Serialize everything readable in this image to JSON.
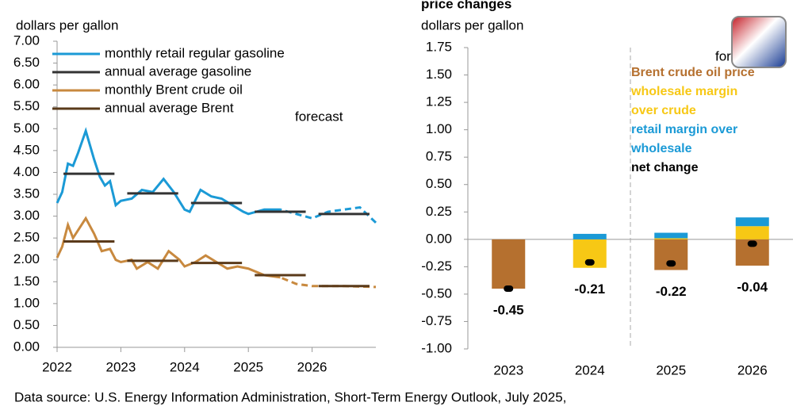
{
  "chart_data": [
    {
      "type": "line",
      "ylabel": "dollars per gallon",
      "xlim": [
        2022,
        2027
      ],
      "xticks": [
        2022,
        2023,
        2024,
        2025,
        2026
      ],
      "ylim": [
        0,
        7
      ],
      "yticks": [
        {
          "value": 0,
          "label": "0.00"
        },
        {
          "value": 0.5,
          "label": "0.50"
        },
        {
          "value": 1,
          "label": "1.00"
        },
        {
          "value": 1.5,
          "label": "1.50"
        },
        {
          "value": 2,
          "label": "2.00"
        },
        {
          "value": 2.5,
          "label": "2.50"
        },
        {
          "value": 3,
          "label": "3.00"
        },
        {
          "value": 3.5,
          "label": "3.50"
        },
        {
          "value": 4,
          "label": "4.00"
        },
        {
          "value": 4.5,
          "label": "4.50"
        },
        {
          "value": 5,
          "label": "5.00"
        },
        {
          "value": 5.5,
          "label": "5.50"
        },
        {
          "value": 6,
          "label": "6.00"
        },
        {
          "value": 6.5,
          "label": "6.50"
        },
        {
          "value": 7,
          "label": "7.00"
        }
      ],
      "forecast_from": 2025.5,
      "annotation": "forecast",
      "series": [
        {
          "name": "monthly retail regular gasoline",
          "color": "#1b9ad6",
          "style": "line",
          "x": [
            2022.0,
            2022.08,
            2022.17,
            2022.25,
            2022.33,
            2022.45,
            2022.58,
            2022.67,
            2022.75,
            2022.83,
            2022.92,
            2023.0,
            2023.17,
            2023.33,
            2023.5,
            2023.67,
            2023.83,
            2024.0,
            2024.08,
            2024.25,
            2024.42,
            2024.58,
            2024.75,
            2024.92,
            2025.0,
            2025.25,
            2025.5,
            2025.75,
            2026.0,
            2026.25,
            2026.5,
            2026.75,
            2027.0
          ],
          "values": [
            3.3,
            3.55,
            4.2,
            4.15,
            4.45,
            4.95,
            4.3,
            3.9,
            3.7,
            3.8,
            3.25,
            3.35,
            3.4,
            3.6,
            3.55,
            3.85,
            3.55,
            3.15,
            3.1,
            3.6,
            3.45,
            3.4,
            3.25,
            3.1,
            3.05,
            3.15,
            3.15,
            3.05,
            2.95,
            3.1,
            3.15,
            3.2,
            2.85
          ]
        },
        {
          "name": "annual average gasoline",
          "color": "#333333",
          "style": "segment",
          "x": [
            2022,
            2023,
            2024,
            2025,
            2026
          ],
          "values": [
            3.97,
            3.52,
            3.3,
            3.1,
            3.05
          ]
        },
        {
          "name": "monthly Brent crude oil",
          "color": "#c8893f",
          "style": "line",
          "x": [
            2022.0,
            2022.08,
            2022.17,
            2022.25,
            2022.45,
            2022.58,
            2022.7,
            2022.83,
            2022.92,
            2023.0,
            2023.17,
            2023.25,
            2023.42,
            2023.58,
            2023.75,
            2023.92,
            2024.0,
            2024.17,
            2024.33,
            2024.5,
            2024.67,
            2024.83,
            2025.0,
            2025.25,
            2025.5,
            2025.75,
            2026.0,
            2026.5,
            2027.0
          ],
          "values": [
            2.05,
            2.3,
            2.8,
            2.5,
            2.95,
            2.6,
            2.2,
            2.25,
            2.0,
            1.95,
            2.0,
            1.8,
            1.95,
            1.8,
            2.2,
            2.0,
            1.85,
            1.95,
            2.1,
            1.95,
            1.8,
            1.85,
            1.8,
            1.65,
            1.6,
            1.45,
            1.4,
            1.4,
            1.38
          ]
        },
        {
          "name": "annual average Brent",
          "color": "#5a3a1a",
          "style": "segment",
          "x": [
            2022,
            2023,
            2024,
            2025,
            2026
          ],
          "values": [
            2.42,
            1.98,
            1.93,
            1.65,
            1.4
          ]
        }
      ]
    },
    {
      "type": "stacked-bar",
      "title": "price changes",
      "ylabel": "dollars per gallon",
      "categories": [
        "2023",
        "2024",
        "2025",
        "2026"
      ],
      "ylim": [
        -1,
        1.75
      ],
      "yticks": [
        {
          "value": -1,
          "label": "-1.00"
        },
        {
          "value": -0.75,
          "label": "-0.75"
        },
        {
          "value": -0.5,
          "label": "-0.50"
        },
        {
          "value": -0.25,
          "label": "-0.25"
        },
        {
          "value": 0,
          "label": "0.00"
        },
        {
          "value": 0.25,
          "label": "0.25"
        },
        {
          "value": 0.5,
          "label": "0.50"
        },
        {
          "value": 0.75,
          "label": "0.75"
        },
        {
          "value": 1,
          "label": "1.00"
        },
        {
          "value": 1.25,
          "label": "1.25"
        },
        {
          "value": 1.5,
          "label": "1.50"
        },
        {
          "value": 1.75,
          "label": "1.75"
        }
      ],
      "forecast_index": 2,
      "annotation": "forecast",
      "series": [
        {
          "name": "Brent  crude oil price",
          "color": "#b5702f",
          "values": [
            -0.45,
            0,
            -0.28,
            -0.24
          ]
        },
        {
          "name": "wholesale margin  over crude",
          "color": "#f7c815",
          "values": [
            0,
            -0.26,
            0.01,
            0.12
          ]
        },
        {
          "name": "retail margin over wholesale",
          "color": "#1b9ad6",
          "values": [
            0,
            0.05,
            0.05,
            0.08
          ]
        }
      ],
      "net": {
        "name": "net change",
        "color": "#000000",
        "values": [
          -0.45,
          -0.21,
          -0.22,
          -0.04
        ]
      }
    },
    {
      "type": "footer",
      "source": "Data source: U.S. Energy Information Administration, Short-Term Energy Outlook, July 2025,"
    }
  ]
}
